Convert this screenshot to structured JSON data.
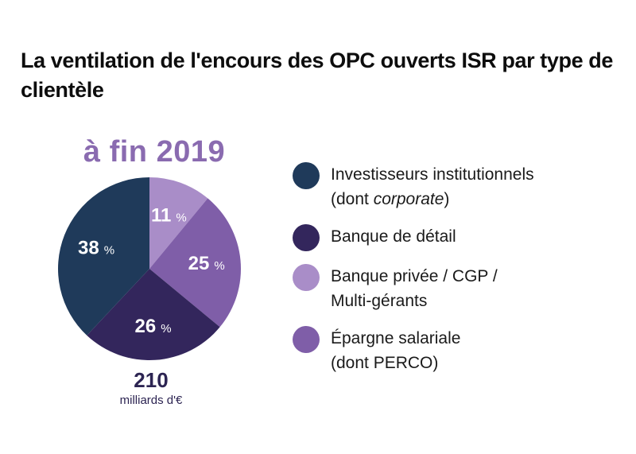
{
  "title": "La ventilation de l'encours des OPC ouverts ISR par type de clientèle",
  "subtitle": "à fin 2019",
  "total": {
    "value": "210",
    "unit": "milliards d'€"
  },
  "percent_suffix": "%",
  "colors": {
    "title": "#0d0d0d",
    "subtitle": "#8a6bb0",
    "label_text": "#ffffff"
  },
  "chart_data": {
    "type": "pie",
    "title": "La ventilation de l'encours des OPC ouverts ISR par type de clientèle",
    "subtitle": "à fin 2019",
    "total": 210,
    "total_unit": "milliards d'€",
    "legend_position": "right",
    "categories": [
      "Investisseurs institutionnels (dont corporate)",
      "Banque de détail",
      "Banque privée / CGP / Multi-gérants",
      "Épargne salariale (dont PERCO)"
    ],
    "values": [
      38,
      26,
      11,
      25
    ],
    "slice_order_clockwise_from_top": [
      "Banque privée / CGP / Multi-gérants",
      "Épargne salariale (dont PERCO)",
      "Banque de détail",
      "Investisseurs institutionnels (dont corporate)"
    ],
    "colors": {
      "Investisseurs institutionnels (dont corporate)": "#1f3a5a",
      "Banque de détail": "#33265c",
      "Banque privée / CGP / Multi-gérants": "#a98dc8",
      "Épargne salariale (dont PERCO)": "#7f5ea8"
    }
  },
  "legend": [
    {
      "line1": "Investisseurs institutionnels",
      "line2_prefix": "(dont ",
      "line2_italic": "corporate",
      "line2_suffix": ")",
      "color": "#1f3a5a"
    },
    {
      "line1": "Banque de détail",
      "line2_prefix": "",
      "line2_italic": "",
      "line2_suffix": "",
      "color": "#33265c"
    },
    {
      "line1": "Banque privée / CGP /",
      "line2_prefix": "Multi-gérants",
      "line2_italic": "",
      "line2_suffix": "",
      "color": "#a98dc8"
    },
    {
      "line1": "Épargne salariale",
      "line2_prefix": "(dont PERCO)",
      "line2_italic": "",
      "line2_suffix": "",
      "color": "#7f5ea8"
    }
  ]
}
